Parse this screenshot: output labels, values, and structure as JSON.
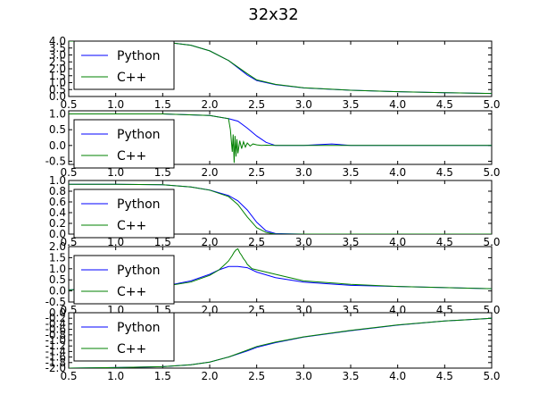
{
  "figure_title": "32x32",
  "colors": {
    "python": "#0000ff",
    "cpp": "#008000",
    "axes": "#000000",
    "background": "#ffffff"
  },
  "legend_labels": [
    "Python",
    "C++"
  ],
  "chart_data": [
    {
      "type": "line",
      "xlim": [
        0.5,
        5.0
      ],
      "ylim": [
        0.0,
        4.0
      ],
      "x_ticks": [
        "0.5",
        "1.0",
        "1.5",
        "2.0",
        "2.5",
        "3.0",
        "3.5",
        "4.0",
        "4.5",
        "5.0"
      ],
      "y_ticks": [
        "0.0",
        "0.5",
        "1.0",
        "1.5",
        "2.0",
        "2.5",
        "3.0",
        "3.5",
        "4.0"
      ],
      "legend_position": "top-left",
      "series": [
        {
          "name": "Python",
          "x": [
            0.5,
            1.0,
            1.5,
            1.8,
            2.0,
            2.2,
            2.4,
            2.5,
            2.7,
            3.0,
            3.5,
            4.0,
            4.5,
            5.0
          ],
          "y": [
            4.0,
            4.0,
            3.95,
            3.7,
            3.3,
            2.6,
            1.55,
            1.15,
            0.85,
            0.62,
            0.45,
            0.35,
            0.28,
            0.22
          ]
        },
        {
          "name": "C++",
          "x": [
            0.5,
            1.0,
            1.5,
            1.8,
            2.0,
            2.2,
            2.4,
            2.5,
            2.7,
            3.0,
            3.5,
            4.0,
            4.5,
            5.0
          ],
          "y": [
            4.0,
            4.0,
            3.95,
            3.7,
            3.3,
            2.6,
            1.65,
            1.2,
            0.88,
            0.63,
            0.45,
            0.35,
            0.28,
            0.22
          ]
        }
      ]
    },
    {
      "type": "line",
      "xlim": [
        0.5,
        5.0
      ],
      "ylim": [
        -0.6,
        1.1
      ],
      "x_ticks": [
        "0.5",
        "1.0",
        "1.5",
        "2.0",
        "2.5",
        "3.0",
        "3.5",
        "4.0",
        "4.5",
        "5.0"
      ],
      "y_ticks": [
        "-0.5",
        "0.0",
        "0.5",
        "1.0"
      ],
      "legend_position": "left",
      "series": [
        {
          "name": "Python",
          "x": [
            0.5,
            1.0,
            1.5,
            2.0,
            2.2,
            2.3,
            2.4,
            2.5,
            2.6,
            2.7,
            3.0,
            3.3,
            3.5,
            4.0,
            4.5,
            5.0
          ],
          "y": [
            1.0,
            1.0,
            1.0,
            0.95,
            0.85,
            0.77,
            0.55,
            0.3,
            0.1,
            0.0,
            0.0,
            0.05,
            0.0,
            0.0,
            0.0,
            0.0
          ]
        },
        {
          "name": "C++",
          "x": [
            0.5,
            1.0,
            1.5,
            2.0,
            2.2,
            2.22,
            2.24,
            2.25,
            2.26,
            2.27,
            2.28,
            2.29,
            2.3,
            2.32,
            2.34,
            2.36,
            2.38,
            2.4,
            2.43,
            2.46,
            2.5,
            2.55,
            2.6,
            2.7,
            3.0,
            3.5,
            4.0,
            4.5,
            5.0
          ],
          "y": [
            1.0,
            1.0,
            1.0,
            0.95,
            0.85,
            0.5,
            -0.2,
            0.35,
            -0.55,
            0.3,
            -0.35,
            0.2,
            -0.25,
            0.15,
            -0.1,
            0.12,
            -0.05,
            0.08,
            -0.02,
            0.05,
            0.02,
            0.0,
            0.01,
            0.0,
            0.0,
            0.0,
            0.0,
            0.0,
            0.0
          ]
        }
      ]
    },
    {
      "type": "line",
      "xlim": [
        0.5,
        5.0
      ],
      "ylim": [
        0.0,
        1.0
      ],
      "x_ticks": [
        "0.5",
        "1.0",
        "1.5",
        "2.0",
        "2.5",
        "3.0",
        "3.5",
        "4.0",
        "4.5",
        "5.0"
      ],
      "y_ticks": [
        "0.0",
        "0.2",
        "0.4",
        "0.6",
        "0.8",
        "1.0"
      ],
      "legend_position": "left",
      "series": [
        {
          "name": "Python",
          "x": [
            0.5,
            1.0,
            1.5,
            1.8,
            2.0,
            2.2,
            2.3,
            2.4,
            2.5,
            2.6,
            2.7,
            3.0,
            3.5,
            4.0,
            4.5,
            5.0
          ],
          "y": [
            0.93,
            0.93,
            0.92,
            0.88,
            0.82,
            0.72,
            0.62,
            0.45,
            0.22,
            0.06,
            0.01,
            0.0,
            0.0,
            0.0,
            0.0,
            0.0
          ]
        },
        {
          "name": "C++",
          "x": [
            0.5,
            1.0,
            1.5,
            1.8,
            2.0,
            2.2,
            2.3,
            2.4,
            2.5,
            2.6,
            2.7,
            3.0,
            3.5,
            4.0,
            4.5,
            5.0
          ],
          "y": [
            0.93,
            0.93,
            0.92,
            0.88,
            0.82,
            0.7,
            0.55,
            0.32,
            0.12,
            0.03,
            0.0,
            0.0,
            0.0,
            0.0,
            0.0,
            0.0
          ]
        }
      ]
    },
    {
      "type": "line",
      "xlim": [
        0.5,
        5.0
      ],
      "ylim": [
        -0.5,
        2.0
      ],
      "x_ticks": [
        "0.5",
        "1.0",
        "1.5",
        "2.0",
        "2.5",
        "3.0",
        "3.5",
        "4.0",
        "4.5",
        "5.0"
      ],
      "y_ticks": [
        "-0.5",
        "0.0",
        "0.5",
        "1.0",
        "1.5",
        "2.0"
      ],
      "legend_position": "left",
      "series": [
        {
          "name": "Python",
          "x": [
            0.5,
            1.0,
            1.5,
            1.8,
            2.0,
            2.1,
            2.2,
            2.3,
            2.4,
            2.5,
            2.7,
            3.0,
            3.5,
            4.0,
            4.5,
            5.0
          ],
          "y": [
            0.05,
            0.1,
            0.2,
            0.45,
            0.75,
            0.95,
            1.1,
            1.1,
            1.05,
            0.85,
            0.6,
            0.4,
            0.25,
            0.2,
            0.15,
            0.1
          ]
        },
        {
          "name": "C++",
          "x": [
            0.5,
            1.0,
            1.5,
            1.8,
            2.0,
            2.1,
            2.15,
            2.2,
            2.24,
            2.26,
            2.28,
            2.3,
            2.32,
            2.34,
            2.36,
            2.38,
            2.4,
            2.45,
            2.5,
            2.6,
            2.7,
            2.8,
            3.0,
            3.5,
            4.0,
            4.5,
            5.0
          ],
          "y": [
            0.05,
            0.1,
            0.2,
            0.4,
            0.7,
            0.95,
            1.15,
            1.35,
            1.6,
            1.75,
            1.85,
            1.9,
            1.72,
            1.6,
            1.45,
            1.35,
            1.2,
            1.0,
            0.95,
            0.85,
            0.75,
            0.65,
            0.45,
            0.3,
            0.2,
            0.15,
            0.1
          ]
        }
      ]
    },
    {
      "type": "line",
      "xlim": [
        0.5,
        5.0
      ],
      "ylim": [
        -2.0,
        0.0
      ],
      "x_ticks": [
        "0.5",
        "1.0",
        "1.5",
        "2.0",
        "2.5",
        "3.0",
        "3.5",
        "4.0",
        "4.5",
        "5.0"
      ],
      "y_ticks": [
        "-2.0",
        "-1.8",
        "-1.6",
        "-1.4",
        "-1.2",
        "-1.0",
        "-0.8",
        "-0.6",
        "-0.4",
        "-0.2",
        "0.0"
      ],
      "legend_position": "top-left",
      "series": [
        {
          "name": "Python",
          "x": [
            0.5,
            1.0,
            1.5,
            1.8,
            2.0,
            2.2,
            2.4,
            2.5,
            2.7,
            3.0,
            3.5,
            4.0,
            4.5,
            5.0
          ],
          "y": [
            -2.0,
            -1.98,
            -1.95,
            -1.88,
            -1.78,
            -1.6,
            -1.38,
            -1.25,
            -1.08,
            -0.88,
            -0.65,
            -0.45,
            -0.3,
            -0.2
          ]
        },
        {
          "name": "C++",
          "x": [
            0.5,
            1.0,
            1.5,
            1.8,
            2.0,
            2.2,
            2.4,
            2.5,
            2.7,
            3.0,
            3.5,
            4.0,
            4.5,
            5.0
          ],
          "y": [
            -2.0,
            -1.98,
            -1.95,
            -1.88,
            -1.78,
            -1.6,
            -1.35,
            -1.22,
            -1.06,
            -0.87,
            -0.64,
            -0.44,
            -0.3,
            -0.2
          ]
        }
      ]
    }
  ]
}
